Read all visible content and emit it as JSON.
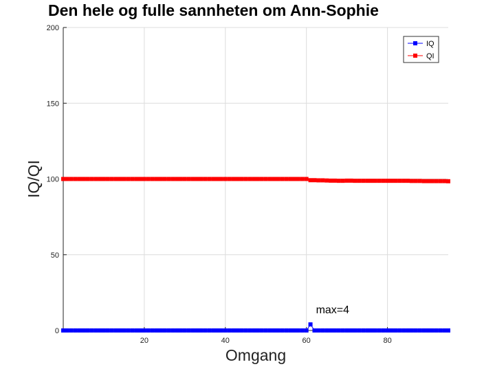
{
  "chart_data": {
    "type": "line",
    "title": "Den hele og fulle sannheten om Ann-Sophie",
    "xlabel": "Omgang",
    "ylabel": "IQ/QI",
    "xlim": [
      0,
      95
    ],
    "ylim": [
      0,
      200
    ],
    "xticks": [
      20,
      40,
      60,
      80
    ],
    "yticks": [
      0,
      50,
      100,
      150,
      200
    ],
    "grid": true,
    "legend_position": "top-right",
    "annotation": {
      "text": "max=4",
      "x": 61,
      "y": 4
    },
    "series": [
      {
        "name": "IQ",
        "color": "#0000ff",
        "marker": "square",
        "x": [
          0,
          1,
          2,
          3,
          4,
          5,
          6,
          7,
          8,
          9,
          10,
          11,
          12,
          13,
          14,
          15,
          16,
          17,
          18,
          19,
          20,
          21,
          22,
          23,
          24,
          25,
          26,
          27,
          28,
          29,
          30,
          31,
          32,
          33,
          34,
          35,
          36,
          37,
          38,
          39,
          40,
          41,
          42,
          43,
          44,
          45,
          46,
          47,
          48,
          49,
          50,
          51,
          52,
          53,
          54,
          55,
          56,
          57,
          58,
          59,
          60,
          61,
          62,
          63,
          64,
          65,
          66,
          67,
          68,
          69,
          70,
          71,
          72,
          73,
          74,
          75,
          76,
          77,
          78,
          79,
          80,
          81,
          82,
          83,
          84,
          85,
          86,
          87,
          88,
          89,
          90,
          91,
          92,
          93,
          94,
          95
        ],
        "y": [
          0,
          0,
          0,
          0,
          0,
          0,
          0,
          0,
          0,
          0,
          0,
          0,
          0,
          0,
          0,
          0,
          0,
          0,
          0,
          0,
          0,
          0,
          0,
          0,
          0,
          0,
          0,
          0,
          0,
          0,
          0,
          0,
          0,
          0,
          0,
          0,
          0,
          0,
          0,
          0,
          0,
          0,
          0,
          0,
          0,
          0,
          0,
          0,
          0,
          0,
          0,
          0,
          0,
          0,
          0,
          0,
          0,
          0,
          0,
          0,
          0,
          4,
          0,
          0,
          0,
          0,
          0,
          0,
          0,
          0,
          0,
          0,
          0,
          0,
          0,
          0,
          0,
          0,
          0,
          0,
          0,
          0,
          0,
          0,
          0,
          0,
          0,
          0,
          0,
          0,
          0,
          0,
          0,
          0,
          0,
          0
        ]
      },
      {
        "name": "QI",
        "color": "#ff0000",
        "marker": "square",
        "x": [
          0,
          1,
          2,
          3,
          4,
          5,
          6,
          7,
          8,
          9,
          10,
          11,
          12,
          13,
          14,
          15,
          16,
          17,
          18,
          19,
          20,
          21,
          22,
          23,
          24,
          25,
          26,
          27,
          28,
          29,
          30,
          31,
          32,
          33,
          34,
          35,
          36,
          37,
          38,
          39,
          40,
          41,
          42,
          43,
          44,
          45,
          46,
          47,
          48,
          49,
          50,
          51,
          52,
          53,
          54,
          55,
          56,
          57,
          58,
          59,
          60,
          61,
          62,
          63,
          64,
          65,
          66,
          67,
          68,
          69,
          70,
          71,
          72,
          73,
          74,
          75,
          76,
          77,
          78,
          79,
          80,
          81,
          82,
          83,
          84,
          85,
          86,
          87,
          88,
          89,
          90,
          91,
          92,
          93,
          94,
          95
        ],
        "y": [
          100,
          100,
          100,
          100,
          100,
          100,
          100,
          100,
          100,
          100,
          100,
          100,
          100,
          100,
          100,
          100,
          100,
          100,
          100,
          100,
          100,
          100,
          100,
          100,
          100,
          100,
          100,
          100,
          100,
          100,
          100,
          100,
          100,
          100,
          100,
          100,
          100,
          100,
          100,
          100,
          100,
          100,
          100,
          100,
          100,
          100,
          100,
          100,
          100,
          100,
          100,
          100,
          100,
          100,
          100,
          100,
          100,
          100,
          100,
          100,
          100,
          99.2,
          99.2,
          99.1,
          99.1,
          99,
          98.9,
          98.9,
          98.8,
          98.8,
          98.9,
          98.9,
          98.8,
          98.8,
          98.8,
          98.8,
          98.8,
          98.8,
          98.8,
          98.8,
          98.8,
          98.8,
          98.8,
          98.8,
          98.8,
          98.8,
          98.7,
          98.7,
          98.7,
          98.6,
          98.6,
          98.6,
          98.6,
          98.6,
          98.6,
          98.5
        ]
      }
    ]
  }
}
